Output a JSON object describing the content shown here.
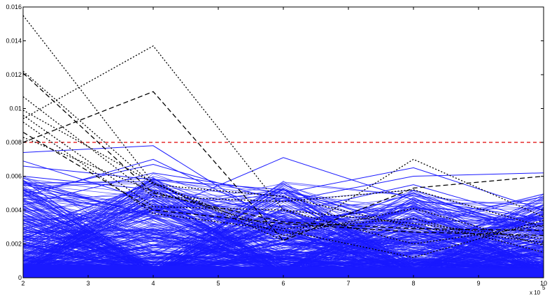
{
  "chart_data": {
    "type": "line",
    "title": "",
    "xlabel": "",
    "ylabel": "",
    "x_multiplier_label": "x 10",
    "x_multiplier_exponent": "5",
    "xlim": [
      2,
      10
    ],
    "ylim": [
      0,
      0.016
    ],
    "x_ticks": [
      2,
      3,
      4,
      5,
      6,
      7,
      8,
      9,
      10
    ],
    "y_ticks": [
      0,
      0.002,
      0.004,
      0.006,
      0.008,
      0.01,
      0.012,
      0.014,
      0.016
    ],
    "x_tick_labels": [
      "2",
      "3",
      "4",
      "5",
      "6",
      "7",
      "8",
      "9",
      "10"
    ],
    "y_tick_labels": [
      "0",
      "0.002",
      "0.004",
      "0.006",
      "0.008",
      "0.01",
      "0.012",
      "0.014",
      "0.016"
    ],
    "x": [
      2,
      4,
      6,
      8,
      10
    ],
    "threshold": {
      "value": 0.008,
      "color": "#e00000",
      "style": "dashed"
    },
    "colors": {
      "normal": "#1a1aff",
      "anomaly": "#000000",
      "axes": "#000000"
    },
    "grid": false,
    "legend": "none",
    "highlight_series": [
      {
        "style": "dotted",
        "values": [
          0.0155,
          0.0056,
          0.0022,
          0.007,
          0.0036
        ]
      },
      {
        "style": "dotted",
        "values": [
          0.0094,
          0.0137,
          0.004,
          0.002,
          0.0031
        ]
      },
      {
        "style": "dashed",
        "values": [
          0.008,
          0.011,
          0.0022,
          0.0053,
          0.006
        ]
      },
      {
        "style": "dotted",
        "values": [
          0.0122,
          0.0055,
          0.0048,
          0.003,
          0.0021
        ]
      },
      {
        "style": "dashed",
        "values": [
          0.0121,
          0.005,
          0.0033,
          0.0029,
          0.0028
        ]
      },
      {
        "style": "dotted",
        "values": [
          0.0107,
          0.0048,
          0.0045,
          0.0052,
          0.003
        ]
      },
      {
        "style": "dotted",
        "values": [
          0.0099,
          0.0056,
          0.0025,
          0.0041,
          0.0019
        ]
      },
      {
        "style": "dotted",
        "values": [
          0.0096,
          0.0042,
          0.004,
          0.0032,
          0.0023
        ]
      },
      {
        "style": "dotted",
        "values": [
          0.0092,
          0.0038,
          0.0028,
          0.0012,
          0.0034
        ]
      },
      {
        "style": "dashed",
        "values": [
          0.0086,
          0.004,
          0.0032,
          0.0027,
          0.0025
        ]
      },
      {
        "style": "dotted",
        "values": [
          0.0083,
          0.0051,
          0.0029,
          0.0035,
          0.0015
        ]
      }
    ],
    "notable_normal_series": [
      {
        "values": [
          0.0074,
          0.0078,
          0.003,
          0.0033,
          0.0035
        ]
      },
      {
        "values": [
          0.0055,
          0.0038,
          0.0071,
          0.0046,
          0.0035
        ]
      },
      {
        "values": [
          0.005,
          0.0067,
          0.0045,
          0.006,
          0.0062
        ]
      },
      {
        "values": [
          0.0066,
          0.0058,
          0.0052,
          0.003,
          0.0048
        ]
      },
      {
        "values": [
          0.0043,
          0.0062,
          0.005,
          0.0065,
          0.004
        ]
      },
      {
        "values": [
          0.006,
          0.0052,
          0.0038,
          0.0055,
          0.0033
        ]
      },
      {
        "values": [
          0.0048,
          0.007,
          0.0033,
          0.0042,
          0.003
        ]
      },
      {
        "values": [
          0.0069,
          0.0045,
          0.0026,
          0.005,
          0.0026
        ]
      }
    ],
    "normal_series_profile": {
      "count": 380,
      "color": "#1a1aff",
      "approx_mean": [
        0.0015,
        0.0013,
        0.0012,
        0.0011,
        0.001
      ],
      "approx_max": [
        0.0074,
        0.0078,
        0.0071,
        0.0065,
        0.0062
      ]
    }
  }
}
